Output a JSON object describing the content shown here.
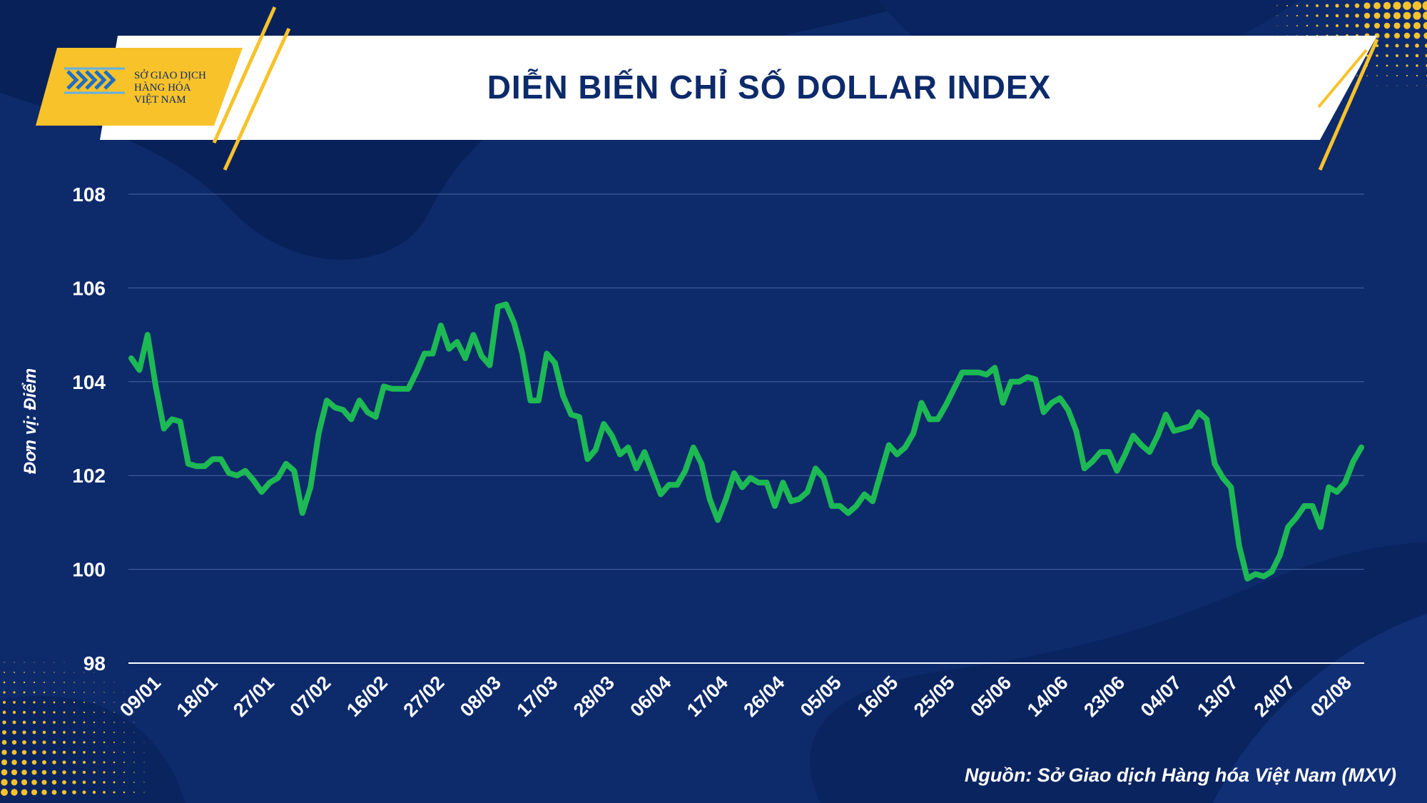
{
  "header": {
    "title": "DIỄN BIẾN CHỈ SỐ DOLLAR INDEX",
    "logo_lines": [
      "SỞ GIAO DỊCH",
      "HÀNG HÓA",
      "VIỆT NAM"
    ]
  },
  "footer": {
    "source": "Nguồn: Sở Giao dịch Hàng hóa Việt Nam (MXV)"
  },
  "colors": {
    "background": "#0d2a6b",
    "line": "#1db954",
    "accent": "#f8c22a",
    "banner": "#ffffff",
    "title": "#0d2a6b"
  },
  "chart_data": {
    "type": "line",
    "ylabel": "Đơn vị: Điểm",
    "xlabel": "",
    "ylim": [
      98,
      108
    ],
    "yticks": [
      98,
      100,
      102,
      104,
      106,
      108
    ],
    "xtick_labels": [
      "09/01",
      "18/01",
      "27/01",
      "07/02",
      "16/02",
      "27/02",
      "08/03",
      "17/03",
      "28/03",
      "06/04",
      "17/04",
      "26/04",
      "05/05",
      "16/05",
      "25/05",
      "05/06",
      "14/06",
      "23/06",
      "04/07",
      "13/07",
      "24/07",
      "02/08"
    ],
    "grid": true,
    "series": [
      {
        "values": [
          104.5,
          104.25,
          105.0,
          103.9,
          103.0,
          103.2,
          103.15,
          102.25,
          102.2,
          102.2,
          102.35,
          102.35,
          102.05,
          102.0,
          102.1,
          101.9,
          101.65,
          101.85,
          101.95,
          102.25,
          102.1,
          101.2,
          101.75,
          102.9,
          103.6,
          103.45,
          103.4,
          103.2,
          103.6,
          103.35,
          103.25,
          103.9,
          103.85,
          103.85,
          103.85,
          104.2,
          104.6,
          104.6,
          105.2,
          104.7,
          104.85,
          104.5,
          105.0,
          104.55,
          104.35,
          105.6,
          105.65,
          105.25,
          104.6,
          103.6,
          103.6,
          104.6,
          104.4,
          103.7,
          103.3,
          103.25,
          102.35,
          102.55,
          103.1,
          102.85,
          102.45,
          102.6,
          102.15,
          102.5,
          102.05,
          101.6,
          101.8,
          101.8,
          102.1,
          102.6,
          102.25,
          101.5,
          101.05,
          101.5,
          102.05,
          101.75,
          101.95,
          101.85,
          101.85,
          101.35,
          101.85,
          101.45,
          101.5,
          101.65,
          102.15,
          101.95,
          101.35,
          101.35,
          101.2,
          101.35,
          101.6,
          101.45,
          102.05,
          102.65,
          102.45,
          102.6,
          102.9,
          103.55,
          103.2,
          103.2,
          103.5,
          103.85,
          104.2,
          104.2,
          104.2,
          104.15,
          104.3,
          103.55,
          104.0,
          104.0,
          104.1,
          104.05,
          103.35,
          103.55,
          103.65,
          103.4,
          102.95,
          102.15,
          102.3,
          102.5,
          102.5,
          102.1,
          102.45,
          102.85,
          102.65,
          102.5,
          102.85,
          103.3,
          102.95,
          103.0,
          103.05,
          103.35,
          103.2,
          102.25,
          101.95,
          101.75,
          100.5,
          99.8,
          99.9,
          99.85,
          99.95,
          100.3,
          100.9,
          101.1,
          101.35,
          101.35,
          100.9,
          101.75,
          101.65,
          101.85,
          102.3,
          102.6
        ]
      }
    ]
  }
}
